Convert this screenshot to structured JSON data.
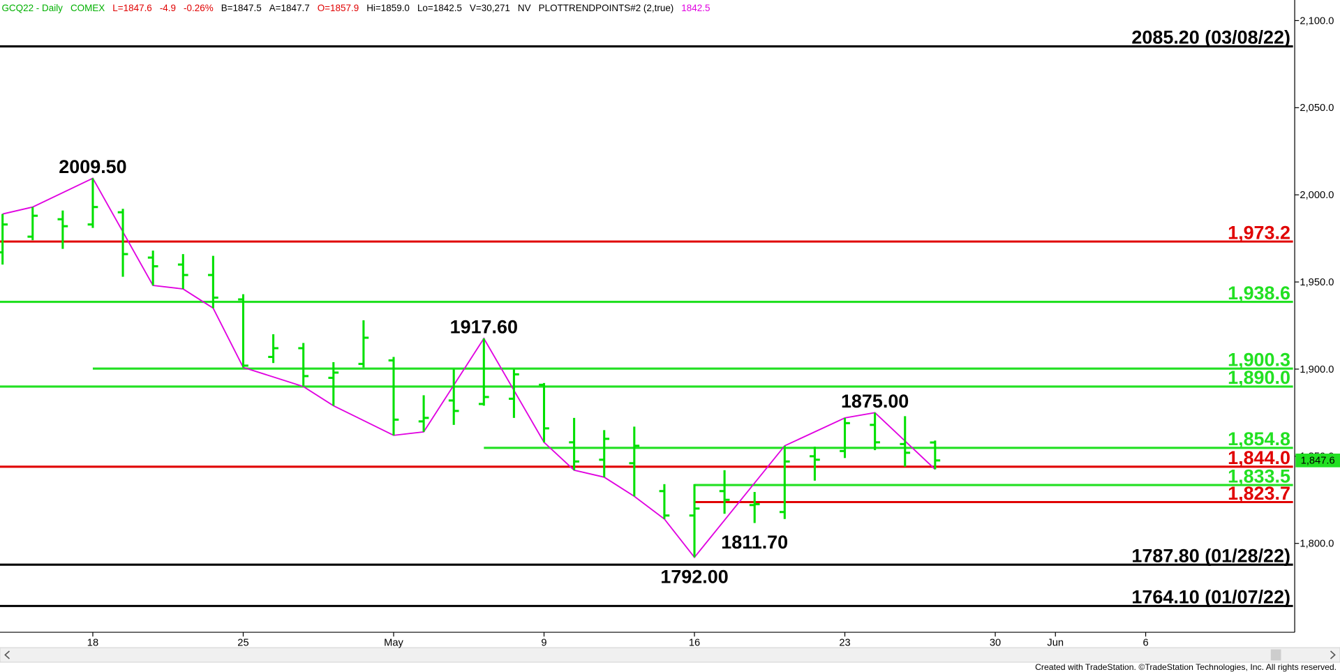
{
  "chart_data": {
    "type": "ohlc",
    "header": [
      {
        "text": "GCQ22 - Daily",
        "color": "#00b000"
      },
      {
        "text": "COMEX",
        "color": "#00b000"
      },
      {
        "text": "L=1847.6",
        "color": "#e00000"
      },
      {
        "text": "-4.9",
        "color": "#e00000"
      },
      {
        "text": "-0.26%",
        "color": "#e00000"
      },
      {
        "text": "B=1847.5",
        "color": "#000000"
      },
      {
        "text": "A=1847.7",
        "color": "#000000"
      },
      {
        "text": "O=1857.9",
        "color": "#e00000"
      },
      {
        "text": "Hi=1859.0",
        "color": "#000000"
      },
      {
        "text": "Lo=1842.5",
        "color": "#000000"
      },
      {
        "text": "V=30,271",
        "color": "#000000"
      },
      {
        "text": "NV",
        "color": "#000000"
      },
      {
        "text": "PLOTTRENDPOINTS#2 (2,true)",
        "color": "#000000"
      },
      {
        "text": "1842.5",
        "color": "#e000e0"
      }
    ],
    "categories": [
      null,
      null,
      null,
      "18",
      null,
      null,
      null,
      null,
      "25",
      null,
      null,
      null,
      null,
      "May",
      null,
      null,
      null,
      null,
      "9",
      null,
      null,
      null,
      null,
      "16",
      null,
      null,
      null,
      null,
      "23",
      null,
      null,
      null,
      null,
      "30",
      null,
      "Jun",
      null,
      null,
      "6",
      null,
      null,
      null,
      null
    ],
    "color": "#00e000",
    "open": [
      1967,
      1976,
      1986,
      1983,
      1990,
      1964,
      1960,
      1954,
      1940,
      1907,
      1912,
      1895,
      1903,
      1905,
      1870,
      1882,
      1880,
      1883,
      1891,
      1858,
      1848,
      1846,
      1830,
      1816,
      1830,
      1822,
      1818,
      1850,
      1853,
      1868,
      1857,
      1857.9,
      null,
      null,
      null,
      null,
      null,
      null,
      null,
      null,
      null,
      null,
      null
    ],
    "high": [
      1989,
      1993,
      1991,
      2009.5,
      1992,
      1968,
      1966,
      1965,
      1943,
      1920,
      1915,
      1904,
      1928,
      1907,
      1885,
      1900,
      1917.6,
      1900,
      1892,
      1872,
      1865,
      1867,
      1834,
      1834,
      1842,
      1829.5,
      1856,
      1855.5,
      1872,
      1875,
      1873,
      1859,
      null,
      null,
      null,
      null,
      null,
      null,
      null,
      null,
      null,
      null,
      null
    ],
    "low": [
      1960,
      1974,
      1969,
      1981,
      1953,
      1948,
      1946,
      1935,
      1901,
      1903.5,
      1890,
      1879,
      1901,
      1862,
      1864,
      1868,
      1879,
      1872,
      1858,
      1842,
      1838,
      1827,
      1814,
      1792,
      1817,
      1811.7,
      1814,
      1836,
      1849,
      1853.5,
      1844,
      1842.5,
      null,
      null,
      null,
      null,
      null,
      null,
      null,
      null,
      null,
      null,
      null
    ],
    "close": [
      1983,
      1988,
      1982,
      1993,
      1966,
      1959,
      1954,
      1941,
      1902,
      1912,
      1896,
      1898,
      1918,
      1871,
      1872,
      1876,
      1884,
      1897,
      1866,
      1847,
      1860,
      1856,
      1816,
      1820,
      1825,
      1822.5,
      1847,
      1848,
      1869,
      1858,
      1852,
      1847.6,
      null,
      null,
      null,
      null,
      null,
      null,
      null,
      null,
      null,
      null,
      null
    ],
    "trend": {
      "color": "#e000e0",
      "x": [
        0,
        1,
        3,
        5,
        6,
        7,
        8,
        10,
        11,
        13,
        14,
        16,
        18,
        19,
        20,
        21,
        22,
        23,
        26,
        28,
        29,
        31
      ],
      "values": [
        1989,
        1993,
        2009.5,
        1948,
        1946,
        1935,
        1901,
        1890,
        1879,
        1862,
        1864,
        1917.6,
        1858,
        1842,
        1838,
        1827,
        1814,
        1792,
        1856,
        1872,
        1875,
        1842.5
      ]
    },
    "levels": [
      {
        "value": 2085.2,
        "label": "2085.20 (03/08/22)",
        "color": "#000000",
        "start": 0
      },
      {
        "value": 1973.2,
        "label": "1,973.2",
        "color": "#e00000",
        "start": 0
      },
      {
        "value": 1938.6,
        "label": "1,938.6",
        "color": "#22e022",
        "start": 0
      },
      {
        "value": 1900.3,
        "label": "1,900.3",
        "color": "#22e022",
        "start": 3
      },
      {
        "value": 1890.0,
        "label": "1,890.0",
        "color": "#22e022",
        "start": 0
      },
      {
        "value": 1854.8,
        "label": "1,854.8",
        "color": "#22e022",
        "start": 16
      },
      {
        "value": 1844.0,
        "label": "1,844.0",
        "color": "#e00000",
        "start": 0
      },
      {
        "value": 1833.5,
        "label": "1,833.5",
        "color": "#22e022",
        "start": 23
      },
      {
        "value": 1823.7,
        "label": "1,823.7",
        "color": "#e00000",
        "start": 23
      },
      {
        "value": 1787.8,
        "label": "1787.80 (01/28/22)",
        "color": "#000000",
        "start": 0
      },
      {
        "value": 1764.1,
        "label": "1764.10 (01/07/22)",
        "color": "#000000",
        "start": 0
      }
    ],
    "annotations": [
      {
        "text": "2009.50",
        "value": 2009.5,
        "index": 3,
        "position": "above"
      },
      {
        "text": "1917.60",
        "value": 1917.6,
        "index": 16,
        "position": "above"
      },
      {
        "text": "1875.00",
        "value": 1875.0,
        "index": 29,
        "position": "above"
      },
      {
        "text": "1811.70",
        "value": 1811.7,
        "index": 25,
        "position": "below"
      },
      {
        "text": "1792.00",
        "value": 1792.0,
        "index": 23,
        "position": "below"
      }
    ],
    "ylim": [
      1749,
      2111.8
    ],
    "yticks": [
      {
        "value": 1800,
        "label": "1,800.0"
      },
      {
        "value": 1850,
        "label": "1,850.0"
      },
      {
        "value": 1900,
        "label": "1,900.0"
      },
      {
        "value": 1950,
        "label": "1,950.0"
      },
      {
        "value": 2000,
        "label": "2,000.0"
      },
      {
        "value": 2050,
        "label": "2,050.0"
      },
      {
        "value": 2100,
        "label": "2,100.0"
      }
    ],
    "last_price": {
      "value": 1847.6,
      "label": "1,847.6",
      "color": "#22e022"
    },
    "grid": false,
    "footer": "Created with TradeStation. ©TradeStation Technologies, Inc. All rights reserved."
  }
}
